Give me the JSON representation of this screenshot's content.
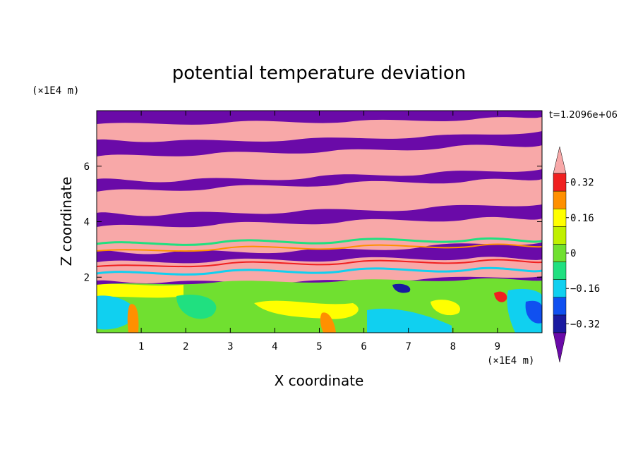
{
  "chart_data": {
    "type": "heatmap",
    "title": "potential temperature deviation",
    "xlabel": "X coordinate",
    "ylabel": "Z coordinate",
    "x_unit": "(×1E4 m)",
    "y_unit": "(×1E4 m)",
    "time_label": "t=1.2096e+06",
    "xlim": [
      0,
      10
    ],
    "ylim": [
      0,
      8
    ],
    "x_ticks": [
      "1",
      "2",
      "3",
      "4",
      "5",
      "6",
      "7",
      "8",
      "9"
    ],
    "y_ticks": [
      "2",
      "4",
      "6"
    ],
    "colorbar": {
      "levels": [
        -0.4,
        -0.32,
        -0.24,
        -0.16,
        -0.08,
        0,
        0.08,
        0.16,
        0.24,
        0.32,
        0.4
      ],
      "tick_labels": [
        "0.32",
        "0.16",
        "0",
        "−0.16",
        "−0.32"
      ],
      "tick_values": [
        0.32,
        0.16,
        0,
        -0.16,
        -0.32
      ],
      "colors_low_to_high": [
        "#6a0aa8",
        "#1a1aa0",
        "#1050f0",
        "#10d0f0",
        "#20e080",
        "#70e030",
        "#c0f000",
        "#ffff00",
        "#ff9000",
        "#f02020",
        "#f8a8a8"
      ],
      "extend": "both"
    },
    "description_levels": {
      "z_0_to_1.8": "mixed near-neutral values: green, cyan, yellow",
      "z_1.8_to_8": "alternating bands of high (pink) and low (purple) values"
    }
  }
}
